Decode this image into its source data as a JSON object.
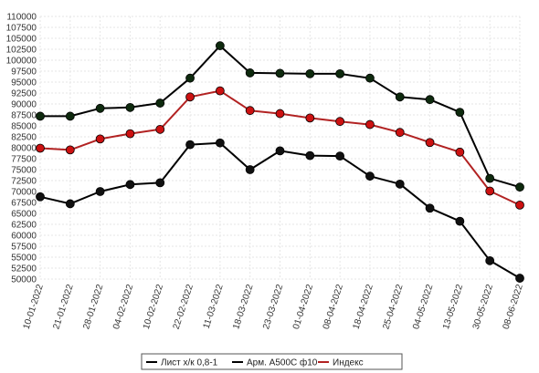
{
  "chart_data": {
    "type": "line",
    "title": "",
    "xlabel": "",
    "ylabel": "",
    "x": [
      "10-01-2022",
      "21-01-2022",
      "28-01-2022",
      "04-02-2022",
      "10-02-2022",
      "22-02-2022",
      "11-03-2022",
      "18-03-2022",
      "23-03-2022",
      "01-04-2022",
      "08-04-2022",
      "18-04-2022",
      "25-04-2022",
      "04-05-2022",
      "13-05-2022",
      "30-05-2022",
      "08-06-2022"
    ],
    "ylim": [
      50000,
      110000
    ],
    "yticks": [
      50000,
      52500,
      55000,
      57500,
      60000,
      62500,
      65000,
      67500,
      70000,
      72500,
      75000,
      77500,
      80000,
      82500,
      85000,
      87500,
      90000,
      92500,
      95000,
      97500,
      100000,
      102500,
      105000,
      107500,
      110000
    ],
    "grid": true,
    "legend_position": "bottom",
    "series": [
      {
        "name": "Лист х/к 0,8-1",
        "color": "#000000",
        "marker_color": "#111111",
        "values": [
          68800,
          67200,
          70000,
          71600,
          72000,
          80700,
          81100,
          75000,
          79300,
          78200,
          78100,
          73500,
          71700,
          66200,
          63200,
          54200,
          50200
        ]
      },
      {
        "name": "Арм. А500С ф10",
        "color": "#000000",
        "marker_color": "#0e2a0e",
        "values": [
          87200,
          87200,
          89000,
          89200,
          90200,
          95900,
          103300,
          97100,
          97000,
          96900,
          96900,
          95900,
          91600,
          91000,
          88100,
          73000,
          71000
        ]
      },
      {
        "name": "Индекс",
        "color": "#b22222",
        "marker_color": "#cc1111",
        "values": [
          79900,
          79500,
          82000,
          83200,
          84200,
          91600,
          93000,
          88500,
          87800,
          86800,
          86000,
          85300,
          83500,
          81200,
          79000,
          70100,
          66900
        ]
      }
    ]
  }
}
